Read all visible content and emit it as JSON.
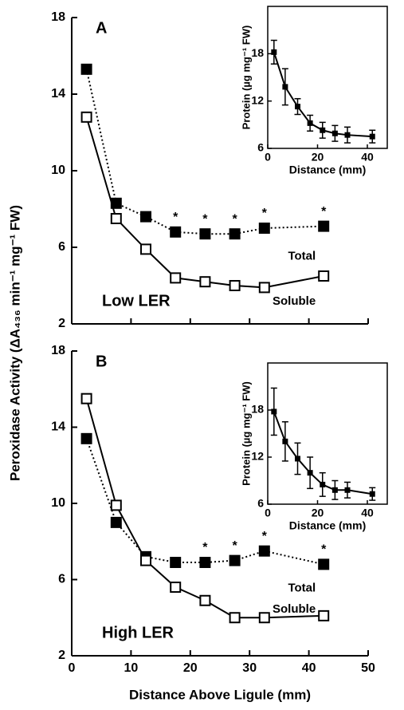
{
  "chart_data": [
    {
      "type": "line",
      "panel": "A",
      "condition": "Low LER",
      "y_label": "Peroxidase Activity (ΔA₄₃₆ min⁻¹ mg⁻¹ FW)",
      "xlim": [
        0,
        50
      ],
      "ylim": [
        2,
        18
      ],
      "yticks": [
        2,
        6,
        10,
        14,
        18
      ],
      "x": [
        2.5,
        7.5,
        12.5,
        17.5,
        22.5,
        27.5,
        32.5,
        42.5
      ],
      "series": [
        {
          "name": "Total",
          "color": "#000000",
          "marker": "filled",
          "line": "dotted",
          "values": [
            15.3,
            8.3,
            7.6,
            6.8,
            6.7,
            6.7,
            7.0,
            7.1
          ]
        },
        {
          "name": "Soluble",
          "color": "#000000",
          "marker": "open",
          "line": "solid",
          "values": [
            12.8,
            7.5,
            5.9,
            4.4,
            4.2,
            4.0,
            3.9,
            4.5
          ]
        }
      ],
      "annotations": [
        {
          "text": "*",
          "x": 17.5
        },
        {
          "text": "*",
          "x": 22.5
        },
        {
          "text": "*",
          "x": 27.5
        },
        {
          "text": "*",
          "x": 32.5
        },
        {
          "text": "*",
          "x": 42.5
        }
      ],
      "inset": {
        "type": "line",
        "x_label": "Distance (mm)",
        "y_label": "Protein (µg mg⁻¹ FW)",
        "xlim": [
          0,
          48
        ],
        "ylim": [
          6,
          24
        ],
        "xticks": [
          0,
          20,
          40
        ],
        "yticks": [
          6,
          12,
          18
        ],
        "x": [
          2.5,
          7,
          12,
          17,
          22,
          27,
          32,
          42
        ],
        "values": [
          18.2,
          13.8,
          11.3,
          9.2,
          8.3,
          7.9,
          7.7,
          7.5
        ],
        "errors": [
          1.5,
          2.3,
          1.0,
          1.0,
          1.0,
          1.0,
          1.0,
          0.8
        ]
      }
    },
    {
      "type": "line",
      "panel": "B",
      "condition": "High LER",
      "x_label": "Distance Above Ligule (mm)",
      "xlim": [
        0,
        50
      ],
      "ylim": [
        2,
        18
      ],
      "xticks": [
        0,
        10,
        20,
        30,
        40,
        50
      ],
      "yticks": [
        2,
        6,
        10,
        14,
        18
      ],
      "x": [
        2.5,
        7.5,
        12.5,
        17.5,
        22.5,
        27.5,
        32.5,
        42.5
      ],
      "series": [
        {
          "name": "Total",
          "color": "#000000",
          "marker": "filled",
          "line": "dotted",
          "values": [
            13.4,
            9.0,
            7.2,
            6.9,
            6.9,
            7.0,
            7.5,
            6.8
          ]
        },
        {
          "name": "Soluble",
          "color": "#000000",
          "marker": "open",
          "line": "solid",
          "values": [
            15.5,
            9.9,
            7.0,
            5.6,
            4.9,
            4.0,
            4.0,
            4.1
          ]
        }
      ],
      "annotations": [
        {
          "text": "*",
          "x": 22.5
        },
        {
          "text": "*",
          "x": 27.5
        },
        {
          "text": "*",
          "x": 32.5
        },
        {
          "text": "*",
          "x": 42.5
        }
      ],
      "inset": {
        "type": "line",
        "x_label": "Distance (mm)",
        "y_label": "Protein (µg mg⁻¹ FW)",
        "xlim": [
          0,
          48
        ],
        "ylim": [
          6,
          24
        ],
        "xticks": [
          0,
          20,
          40
        ],
        "yticks": [
          6,
          12,
          18
        ],
        "x": [
          2.5,
          7,
          12,
          17,
          22,
          27,
          32,
          42
        ],
        "values": [
          17.8,
          14.0,
          11.8,
          10.0,
          8.5,
          7.8,
          7.8,
          7.3
        ],
        "errors": [
          3.0,
          2.5,
          2.0,
          2.0,
          1.5,
          1.2,
          1.0,
          0.8
        ]
      }
    }
  ]
}
